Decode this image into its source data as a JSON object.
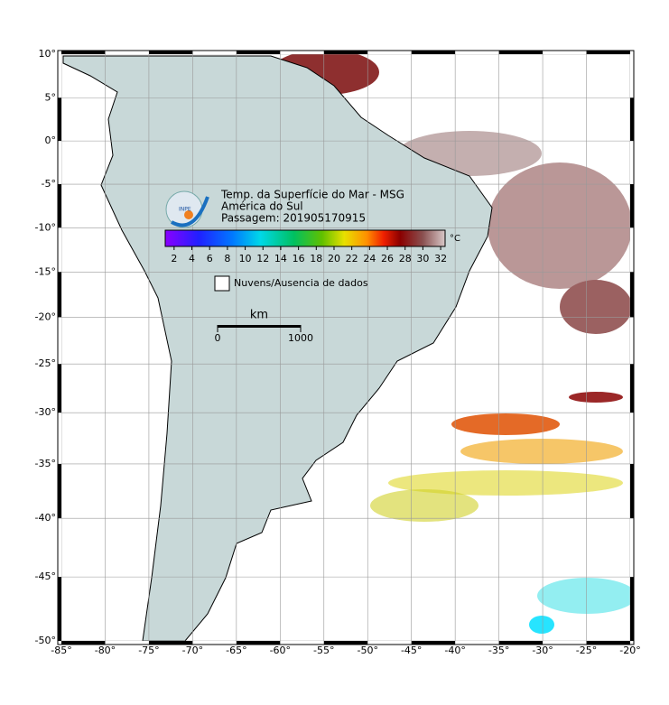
{
  "map": {
    "title_lines": [
      "Temp. da Superfície do Mar - MSG",
      "América do Sul",
      "Passagem: 201905170915"
    ],
    "logo": "INPE",
    "xlim": [
      -85,
      -20
    ],
    "ylim": [
      -50,
      10
    ],
    "xticks": [
      {
        "value": -85,
        "label": "-85°"
      },
      {
        "value": -80,
        "label": "-80°"
      },
      {
        "value": -75,
        "label": "-75°"
      },
      {
        "value": -70,
        "label": "-70°"
      },
      {
        "value": -65,
        "label": "-65°"
      },
      {
        "value": -60,
        "label": "-60°"
      },
      {
        "value": -55,
        "label": "-55°"
      },
      {
        "value": -50,
        "label": "-50°"
      },
      {
        "value": -45,
        "label": "-45°"
      },
      {
        "value": -40,
        "label": "-40°"
      },
      {
        "value": -35,
        "label": "-35°"
      },
      {
        "value": -30,
        "label": "-30°"
      },
      {
        "value": -25,
        "label": "-25°"
      },
      {
        "value": -20,
        "label": "-20°"
      }
    ],
    "yticks": [
      {
        "value": 10,
        "label": "10°"
      },
      {
        "value": 5,
        "label": "5°"
      },
      {
        "value": 0,
        "label": "0°"
      },
      {
        "value": -5,
        "label": "-5°"
      },
      {
        "value": -10,
        "label": "-10°"
      },
      {
        "value": -15,
        "label": "-15°"
      },
      {
        "value": -20,
        "label": "-20°"
      },
      {
        "value": -25,
        "label": "-25°"
      },
      {
        "value": -30,
        "label": "-30°"
      },
      {
        "value": -35,
        "label": "-35°"
      },
      {
        "value": -40,
        "label": "-40°"
      },
      {
        "value": -45,
        "label": "-45°"
      },
      {
        "value": -50,
        "label": "-50°"
      }
    ],
    "colorbar": {
      "lim": [
        1,
        32.5
      ],
      "ticks": [
        2,
        4,
        6,
        8,
        10,
        12,
        14,
        16,
        18,
        20,
        22,
        24,
        26,
        28,
        30,
        32
      ],
      "unit": "°C"
    },
    "legend": "Nuvens/Ausencia de dados",
    "scale_bar": {
      "unit": "km",
      "ticks": [
        0,
        1000
      ]
    }
  }
}
